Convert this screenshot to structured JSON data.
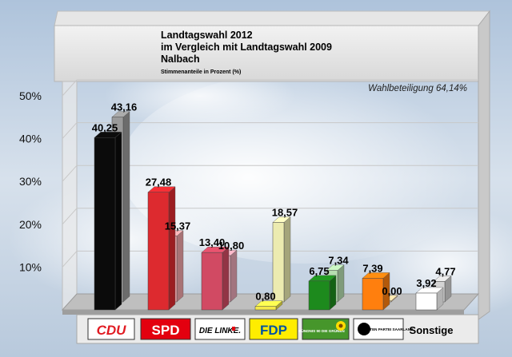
{
  "chart_data": {
    "type": "bar",
    "title": "Landtagswahl 2012",
    "subtitle_lines": [
      "im Vergleich mit Landtagswahl 2009",
      "Nalbach"
    ],
    "note": "Stimmenanteile in Prozent (%)",
    "turnout_label": "Wahlbeteiligung 64,14%",
    "ylim": [
      0,
      50
    ],
    "yticks": [
      "10%",
      "20%",
      "30%",
      "40%",
      "50%"
    ],
    "categories": [
      "CDU",
      "SPD",
      "DIE LINKE.",
      "FDP",
      "BÜNDNIS 90 DIE GRÜNEN",
      "PIRATEN PARTEI SAARLAND",
      "Sonstige"
    ],
    "series": [
      {
        "name": "2012",
        "values": [
          40.25,
          27.48,
          13.4,
          0.8,
          6.75,
          7.39,
          3.92
        ],
        "labels": [
          "40,25",
          "27,48",
          "13,40",
          "0,80",
          "6,75",
          "7,39",
          "3,92"
        ]
      },
      {
        "name": "2009",
        "values": [
          43.16,
          15.37,
          10.8,
          18.57,
          7.34,
          0.0,
          4.77
        ],
        "labels": [
          "43,16",
          "15,37",
          "10,80",
          "18,57",
          "7,34",
          "0,00",
          "4,77"
        ]
      }
    ],
    "colors_2012": [
      "#0b0b0b",
      "#dd2a2f",
      "#d14a63",
      "#f4e84a",
      "#1d8a1d",
      "#ff7f0e",
      "#ffffff"
    ],
    "colors_2009": [
      "#9a9a9a",
      "#f0a4a8",
      "#e8a6b6",
      "#ecebb0",
      "#b6ddb0",
      "#f8d2a0",
      "#d4d4d4"
    ]
  },
  "legend_logos": [
    {
      "text": "CDU",
      "bg": "#ffffff",
      "fg": "#e11b22"
    },
    {
      "text": "SPD",
      "bg": "#e3000f",
      "fg": "#ffffff"
    },
    {
      "text": "DIE LINKE.",
      "bg": "#ffffff",
      "fg": "#000000"
    },
    {
      "text": "FDP",
      "bg": "#ffed00",
      "fg": "#0054a0"
    },
    {
      "text": "BÜNDNIS 90 DIE GRÜNEN",
      "bg": "#46962b",
      "fg": "#ffffff"
    },
    {
      "text": "PIRATEN PARTEI SAARLAND",
      "bg": "#ffffff",
      "fg": "#000000"
    }
  ],
  "sonstige_label": "Sonstige"
}
